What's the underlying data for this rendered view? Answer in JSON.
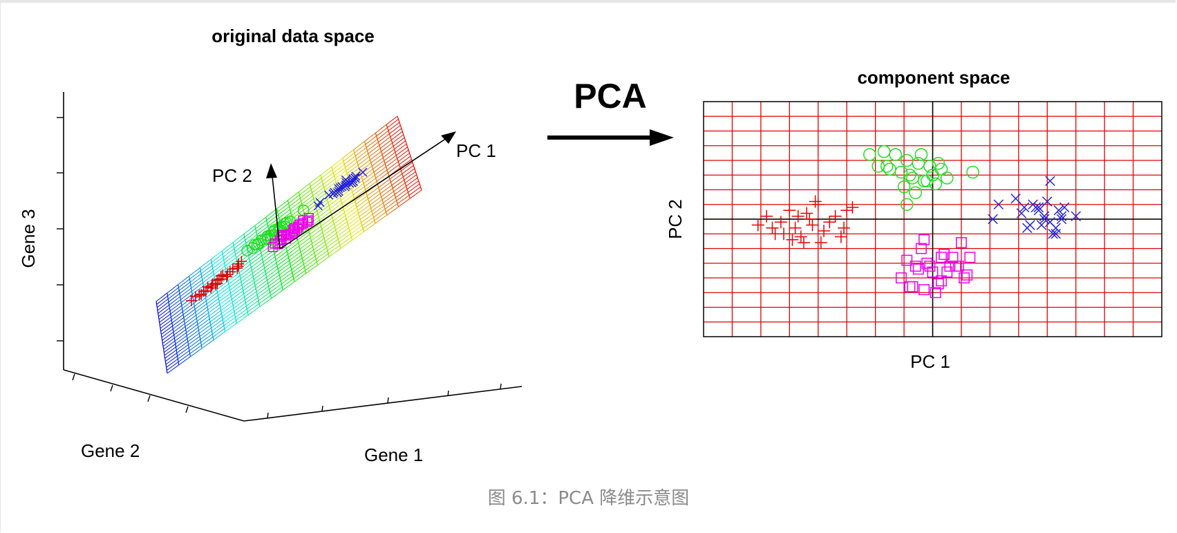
{
  "left_panel": {
    "title": "original data space",
    "axis_labels": {
      "x": "Gene 1",
      "y": "Gene 2",
      "z": "Gene 3"
    },
    "vectors": [
      "PC 1",
      "PC 2"
    ]
  },
  "arrow_label": "PCA",
  "right_panel": {
    "title": "component space",
    "xlabel": "PC 1",
    "ylabel": "PC 2"
  },
  "caption": "图 6.1：PCA 降维示意图",
  "colors": {
    "cluster_plus": "#e00000",
    "cluster_circle": "#22dd22",
    "cluster_square": "#ee00ee",
    "cluster_x": "#2222dd",
    "grid": "#e00000"
  },
  "chart_data": {
    "type": "scatter",
    "title": "component space",
    "xlabel": "PC 1",
    "ylabel": "PC 2",
    "xlim": [
      -8,
      8
    ],
    "ylim": [
      -4,
      4
    ],
    "grid": true,
    "series": [
      {
        "marker": "plus",
        "x": [
          -6.1,
          -5.8,
          -5.5,
          -5.3,
          -5.0,
          -4.8,
          -4.6,
          -4.4,
          -4.2,
          -4.0,
          -3.8,
          -3.6,
          -3.4,
          -3.2,
          -3.0,
          -2.8,
          -4.9,
          -4.5,
          -4.1,
          -5.6,
          -3.1,
          -4.3,
          -3.9,
          -4.7,
          -5.2
        ],
        "y": [
          -0.2,
          0.1,
          -0.5,
          -0.1,
          0.3,
          -0.3,
          -0.6,
          0.2,
          -0.2,
          0.5,
          -0.4,
          -0.1,
          0.1,
          -0.6,
          0.3,
          0.4,
          -0.7,
          -0.8,
          0.6,
          -0.3,
          -0.3,
          0.0,
          -0.8,
          0.1,
          -0.5
        ]
      },
      {
        "marker": "circle",
        "x": [
          -2.2,
          -1.9,
          -1.7,
          -1.5,
          -1.3,
          -1.1,
          -0.9,
          -0.7,
          -0.5,
          -0.3,
          -0.1,
          0.1,
          0.3,
          0.5,
          -1.0,
          -0.6,
          -0.2,
          0.2,
          -1.6,
          -0.4,
          -0.8,
          0.0,
          1.4,
          -0.9
        ],
        "y": [
          2.2,
          1.8,
          2.3,
          1.7,
          2.2,
          1.6,
          2.0,
          1.4,
          1.9,
          1.3,
          1.8,
          1.2,
          1.7,
          1.4,
          1.1,
          0.9,
          1.3,
          1.9,
          1.8,
          2.2,
          1.5,
          1.5,
          1.6,
          0.5
        ]
      },
      {
        "marker": "square",
        "x": [
          -1.1,
          -0.9,
          -0.7,
          -0.5,
          -0.3,
          -0.1,
          0.1,
          0.3,
          0.5,
          0.7,
          0.9,
          1.1,
          1.3,
          -0.8,
          -0.4,
          0.0,
          0.4,
          0.8,
          -0.6,
          0.2,
          0.6,
          1.0,
          -0.2,
          0.3,
          1.2,
          -0.3
        ],
        "y": [
          -2.0,
          -1.4,
          -2.3,
          -1.7,
          -2.4,
          -1.6,
          -2.5,
          -2.1,
          -1.8,
          -1.3,
          -1.6,
          -2.0,
          -1.3,
          -2.3,
          -1.0,
          -1.8,
          -1.2,
          -1.6,
          -1.6,
          -2.2,
          -1.6,
          -0.8,
          -1.5,
          -1.3,
          -1.9,
          -0.7
        ]
      },
      {
        "marker": "x",
        "x": [
          2.1,
          2.3,
          2.9,
          3.1,
          3.3,
          3.5,
          3.7,
          3.9,
          4.1,
          4.3,
          4.5,
          3.6,
          4.0,
          4.4,
          3.8,
          4.2,
          3.4,
          4.6,
          5.0,
          4.1,
          3.9,
          4.3,
          3.7,
          4.5,
          3.2
        ],
        "y": [
          0.0,
          0.5,
          0.7,
          0.2,
          -0.3,
          0.5,
          0.4,
          0.1,
          -0.1,
          -0.5,
          0.0,
          0.4,
          0.6,
          0.3,
          -0.2,
          -0.5,
          -0.2,
          0.4,
          0.1,
          1.3,
          0.0,
          -0.3,
          0.3,
          0.1,
          0.4
        ]
      }
    ]
  }
}
